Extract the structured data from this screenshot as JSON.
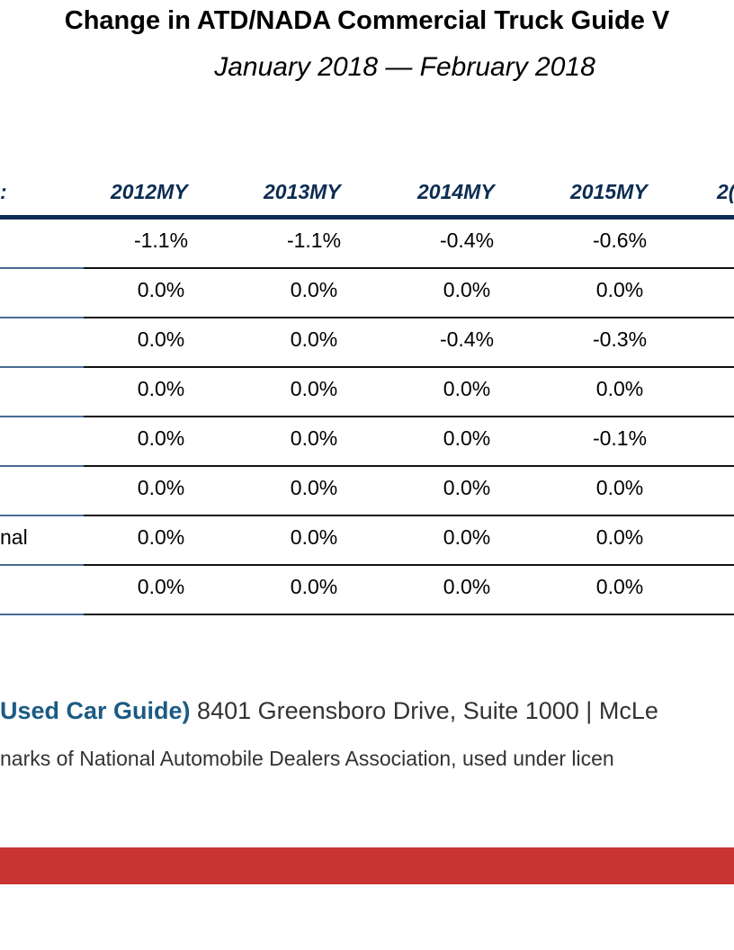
{
  "document": {
    "title": "Change in ATD/NADA Commercial Truck Guide V",
    "subtitle": "January 2018 — February 2018"
  },
  "table": {
    "first_header_fragment": ":",
    "columns": [
      "2012MY",
      "2013MY",
      "2014MY",
      "2015MY",
      "2("
    ],
    "rows": [
      {
        "label": "",
        "values": [
          "-1.1%",
          "-1.1%",
          "-0.4%",
          "-0.6%"
        ]
      },
      {
        "label": "",
        "values": [
          "0.0%",
          "0.0%",
          "0.0%",
          "0.0%"
        ]
      },
      {
        "label": "",
        "values": [
          "0.0%",
          "0.0%",
          "-0.4%",
          "-0.3%"
        ]
      },
      {
        "label": "",
        "values": [
          "0.0%",
          "0.0%",
          "0.0%",
          "0.0%"
        ]
      },
      {
        "label": "",
        "values": [
          "0.0%",
          "0.0%",
          "0.0%",
          "-0.1%"
        ]
      },
      {
        "label": "",
        "values": [
          "0.0%",
          "0.0%",
          "0.0%",
          "0.0%"
        ]
      },
      {
        "label": "nal",
        "values": [
          "0.0%",
          "0.0%",
          "0.0%",
          "0.0%"
        ]
      },
      {
        "label": "",
        "values": [
          "0.0%",
          "0.0%",
          "0.0%",
          "0.0%"
        ]
      }
    ]
  },
  "footer": {
    "brand": "Used Car Guide)",
    "address": " 8401 Greensboro Drive, Suite 1000 | McLe",
    "trademark": "narks of National Automobile Dealers Association, used under licen"
  },
  "colors": {
    "header_text": "#0d2d52",
    "header_rule": "#0d2d52",
    "footer_brand": "#1b5b84",
    "band": "#c83432"
  }
}
